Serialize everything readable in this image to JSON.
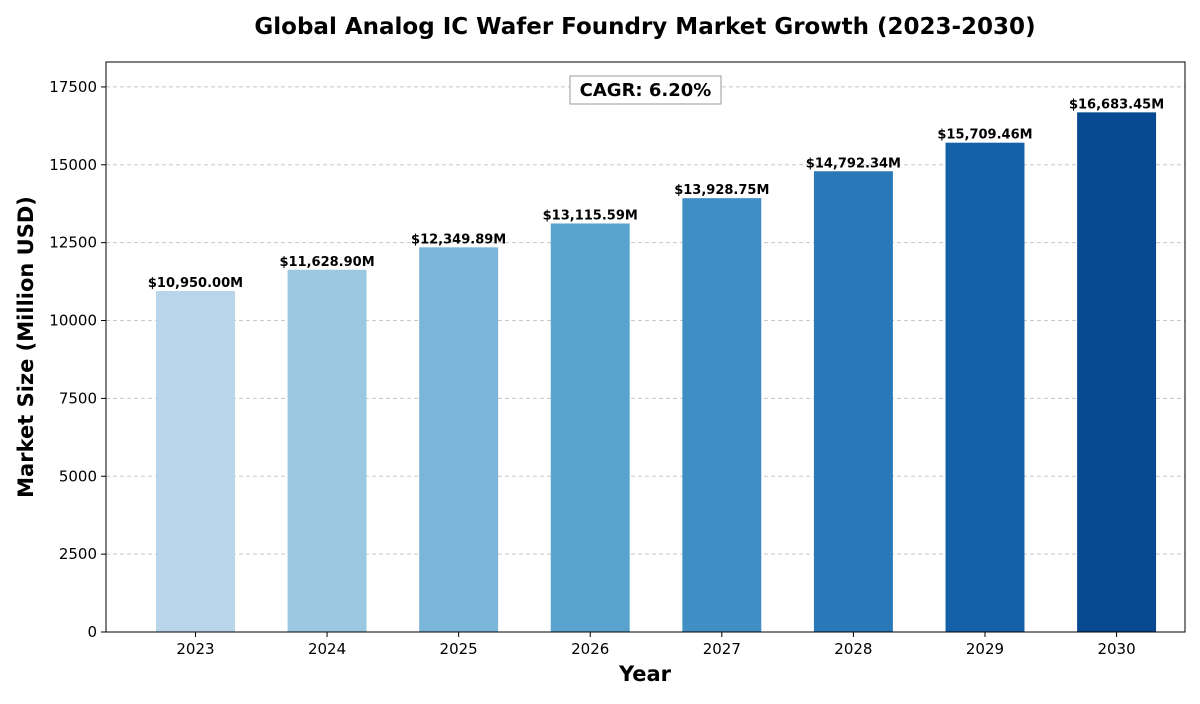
{
  "chart_data": {
    "type": "bar",
    "title": "Global Analog IC Wafer Foundry Market Growth (2023-2030)",
    "xlabel": "Year",
    "ylabel": "Market Size (Million USD)",
    "categories": [
      "2023",
      "2024",
      "2025",
      "2026",
      "2027",
      "2028",
      "2029",
      "2030"
    ],
    "values": [
      10950.0,
      11628.9,
      12349.89,
      13115.59,
      13928.75,
      14792.34,
      15709.46,
      16683.45
    ],
    "value_labels": [
      "$10,950.00M",
      "$11,628.90M",
      "$12,349.89M",
      "$13,115.59M",
      "$13,928.75M",
      "$14,792.34M",
      "$15,709.46M",
      "$16,683.45M"
    ],
    "bar_colors": [
      "#b9d5ea",
      "#9ac8e0",
      "#7ab6d9",
      "#5ba3cf",
      "#3f8fc5",
      "#2979b9",
      "#1561a9",
      "#084a91"
    ],
    "ylim": [
      0,
      18300
    ],
    "yticks": [
      0,
      2500,
      5000,
      7500,
      10000,
      12500,
      15000,
      17500
    ],
    "ytick_labels": [
      "0",
      "2500",
      "5000",
      "7500",
      "10000",
      "12500",
      "15000",
      "17500"
    ],
    "grid": true,
    "annotation": "CAGR: 6.20%"
  }
}
